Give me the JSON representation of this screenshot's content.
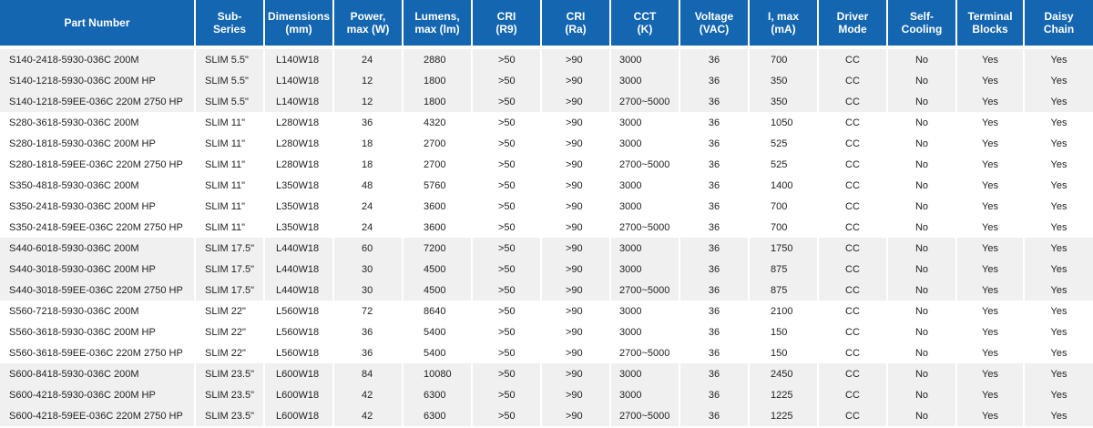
{
  "table": {
    "headers": [
      "Part Number",
      "Sub-\nSeries",
      "Dimensions\n(mm)",
      "Power,\nmax (W)",
      "Lumens,\nmax (lm)",
      "CRI\n(R9)",
      "CRI\n(Ra)",
      "CCT\n(K)",
      "Voltage\n(VAC)",
      "I, max\n(mA)",
      "Driver\nMode",
      "Self-\nCooling",
      "Terminal\nBlocks",
      "Daisy\nChain"
    ],
    "rows": [
      [
        "S140-2418-5930-036C 200M",
        "SLIM 5.5\"",
        "L140W18",
        "24",
        "2880",
        ">50",
        ">90",
        "3000",
        "36",
        "700",
        "CC",
        "No",
        "Yes",
        "Yes"
      ],
      [
        "S140-1218-5930-036C 200M HP",
        "SLIM 5.5\"",
        "L140W18",
        "12",
        "1800",
        ">50",
        ">90",
        "3000",
        "36",
        "350",
        "CC",
        "No",
        "Yes",
        "Yes"
      ],
      [
        "S140-1218-59EE-036C 220M 2750 HP",
        "SLIM 5.5\"",
        "L140W18",
        "12",
        "1800",
        ">50",
        ">90",
        "2700~5000",
        "36",
        "350",
        "CC",
        "No",
        "Yes",
        "Yes"
      ],
      [
        "S280-3618-5930-036C 200M",
        "SLIM 11\"",
        "L280W18",
        "36",
        "4320",
        ">50",
        ">90",
        "3000",
        "36",
        "1050",
        "CC",
        "No",
        "Yes",
        "Yes"
      ],
      [
        "S280-1818-5930-036C 200M HP",
        "SLIM 11\"",
        "L280W18",
        "18",
        "2700",
        ">50",
        ">90",
        "3000",
        "36",
        "525",
        "CC",
        "No",
        "Yes",
        "Yes"
      ],
      [
        "S280-1818-59EE-036C 220M 2750 HP",
        "SLIM 11\"",
        "L280W18",
        "18",
        "2700",
        ">50",
        ">90",
        "2700~5000",
        "36",
        "525",
        "CC",
        "No",
        "Yes",
        "Yes"
      ],
      [
        "S350-4818-5930-036C 200M",
        "SLIM 11\"",
        "L350W18",
        "48",
        "5760",
        ">50",
        ">90",
        "3000",
        "36",
        "1400",
        "CC",
        "No",
        "Yes",
        "Yes"
      ],
      [
        "S350-2418-5930-036C 200M HP",
        "SLIM 11\"",
        "L350W18",
        "24",
        "3600",
        ">50",
        ">90",
        "3000",
        "36",
        "700",
        "CC",
        "No",
        "Yes",
        "Yes"
      ],
      [
        "S350-2418-59EE-036C 220M 2750 HP",
        "SLIM 11\"",
        "L350W18",
        "24",
        "3600",
        ">50",
        ">90",
        "2700~5000",
        "36",
        "700",
        "CC",
        "No",
        "Yes",
        "Yes"
      ],
      [
        "S440-6018-5930-036C 200M",
        "SLIM 17.5\"",
        "L440W18",
        "60",
        "7200",
        ">50",
        ">90",
        "3000",
        "36",
        "1750",
        "CC",
        "No",
        "Yes",
        "Yes"
      ],
      [
        "S440-3018-5930-036C 200M HP",
        "SLIM 17.5\"",
        "L440W18",
        "30",
        "4500",
        ">50",
        ">90",
        "3000",
        "36",
        "875",
        "CC",
        "No",
        "Yes",
        "Yes"
      ],
      [
        "S440-3018-59EE-036C 220M 2750 HP",
        "SLIM 17.5\"",
        "L440W18",
        "30",
        "4500",
        ">50",
        ">90",
        "2700~5000",
        "36",
        "875",
        "CC",
        "No",
        "Yes",
        "Yes"
      ],
      [
        "S560-7218-5930-036C 200M",
        "SLIM 22\"",
        "L560W18",
        "72",
        "8640",
        ">50",
        ">90",
        "3000",
        "36",
        "2100",
        "CC",
        "No",
        "Yes",
        "Yes"
      ],
      [
        "S560-3618-5930-036C 200M HP",
        "SLIM 22\"",
        "L560W18",
        "36",
        "5400",
        ">50",
        ">90",
        "3000",
        "36",
        "150",
        "CC",
        "No",
        "Yes",
        "Yes"
      ],
      [
        "S560-3618-59EE-036C 220M 2750 HP",
        "SLIM 22\"",
        "L560W18",
        "36",
        "5400",
        ">50",
        ">90",
        "2700~5000",
        "36",
        "150",
        "CC",
        "No",
        "Yes",
        "Yes"
      ],
      [
        "S600-8418-5930-036C 200M",
        "SLIM 23.5\"",
        "L600W18",
        "84",
        "10080",
        ">50",
        ">90",
        "3000",
        "36",
        "2450",
        "CC",
        "No",
        "Yes",
        "Yes"
      ],
      [
        "S600-4218-5930-036C 200M HP",
        "SLIM 23.5\"",
        "L600W18",
        "42",
        "6300",
        ">50",
        ">90",
        "3000",
        "36",
        "1225",
        "CC",
        "No",
        "Yes",
        "Yes"
      ],
      [
        "S600-4218-59EE-036C 220M 2750 HP",
        "SLIM 23.5\"",
        "L600W18",
        "42",
        "6300",
        ">50",
        ">90",
        "2700~5000",
        "36",
        "1225",
        "CC",
        "No",
        "Yes",
        "Yes"
      ]
    ]
  }
}
